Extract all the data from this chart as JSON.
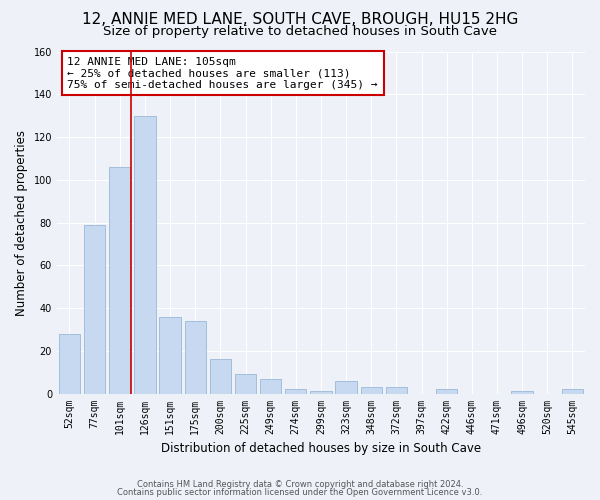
{
  "title": "12, ANNIE MED LANE, SOUTH CAVE, BROUGH, HU15 2HG",
  "subtitle": "Size of property relative to detached houses in South Cave",
  "xlabel": "Distribution of detached houses by size in South Cave",
  "ylabel": "Number of detached properties",
  "categories": [
    "52sqm",
    "77sqm",
    "101sqm",
    "126sqm",
    "151sqm",
    "175sqm",
    "200sqm",
    "225sqm",
    "249sqm",
    "274sqm",
    "299sqm",
    "323sqm",
    "348sqm",
    "372sqm",
    "397sqm",
    "422sqm",
    "446sqm",
    "471sqm",
    "496sqm",
    "520sqm",
    "545sqm"
  ],
  "values": [
    28,
    79,
    106,
    130,
    36,
    34,
    16,
    9,
    7,
    2,
    1,
    6,
    3,
    3,
    0,
    2,
    0,
    0,
    1,
    0,
    2
  ],
  "bar_color": "#c6d9f0",
  "bar_edge_color": "#9ab8d8",
  "vline_color": "#cc0000",
  "annotation_text": "12 ANNIE MED LANE: 105sqm\n← 25% of detached houses are smaller (113)\n75% of semi-detached houses are larger (345) →",
  "annotation_box_color": "white",
  "annotation_box_edge_color": "#cc0000",
  "ylim": [
    0,
    160
  ],
  "yticks": [
    0,
    20,
    40,
    60,
    80,
    100,
    120,
    140,
    160
  ],
  "footer_line1": "Contains HM Land Registry data © Crown copyright and database right 2024.",
  "footer_line2": "Contains public sector information licensed under the Open Government Licence v3.0.",
  "bg_color": "#eef2f8",
  "grid_color": "#ffffff",
  "title_fontsize": 11,
  "subtitle_fontsize": 9.5,
  "tick_fontsize": 7,
  "ylabel_fontsize": 8.5,
  "xlabel_fontsize": 8.5,
  "annotation_fontsize": 8,
  "footer_fontsize": 6
}
